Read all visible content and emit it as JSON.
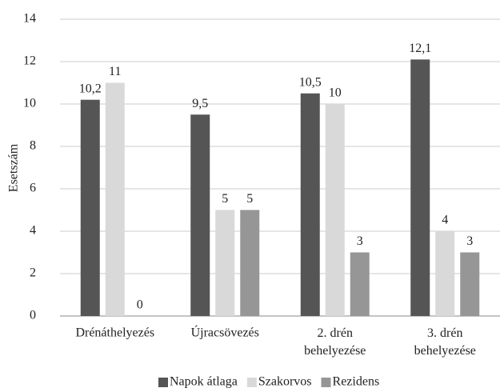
{
  "chart_data": {
    "type": "bar",
    "y_label": "Esetszám",
    "categories": [
      "Drénáthelyezés",
      "Újracsövezés",
      "2. drén\nbehelyezése",
      "3. drén\nbehelyezése"
    ],
    "series": [
      {
        "name": "Napok átlaga",
        "color": "#555555",
        "values": [
          10.2,
          9.5,
          10.5,
          12.1
        ],
        "value_labels": [
          "10,2",
          "9,5",
          "10,5",
          "12,1"
        ]
      },
      {
        "name": "Szakorvos",
        "color": "#d9d9d9",
        "values": [
          11,
          5,
          10,
          4
        ]
      },
      {
        "name": "Rezidens",
        "color": "#969696",
        "values": [
          0,
          5,
          3,
          3
        ]
      }
    ],
    "ylim": [
      0,
      14
    ],
    "yticks": [
      0,
      2,
      4,
      6,
      8,
      10,
      12,
      14
    ],
    "grid": true,
    "legend": "bottom"
  }
}
